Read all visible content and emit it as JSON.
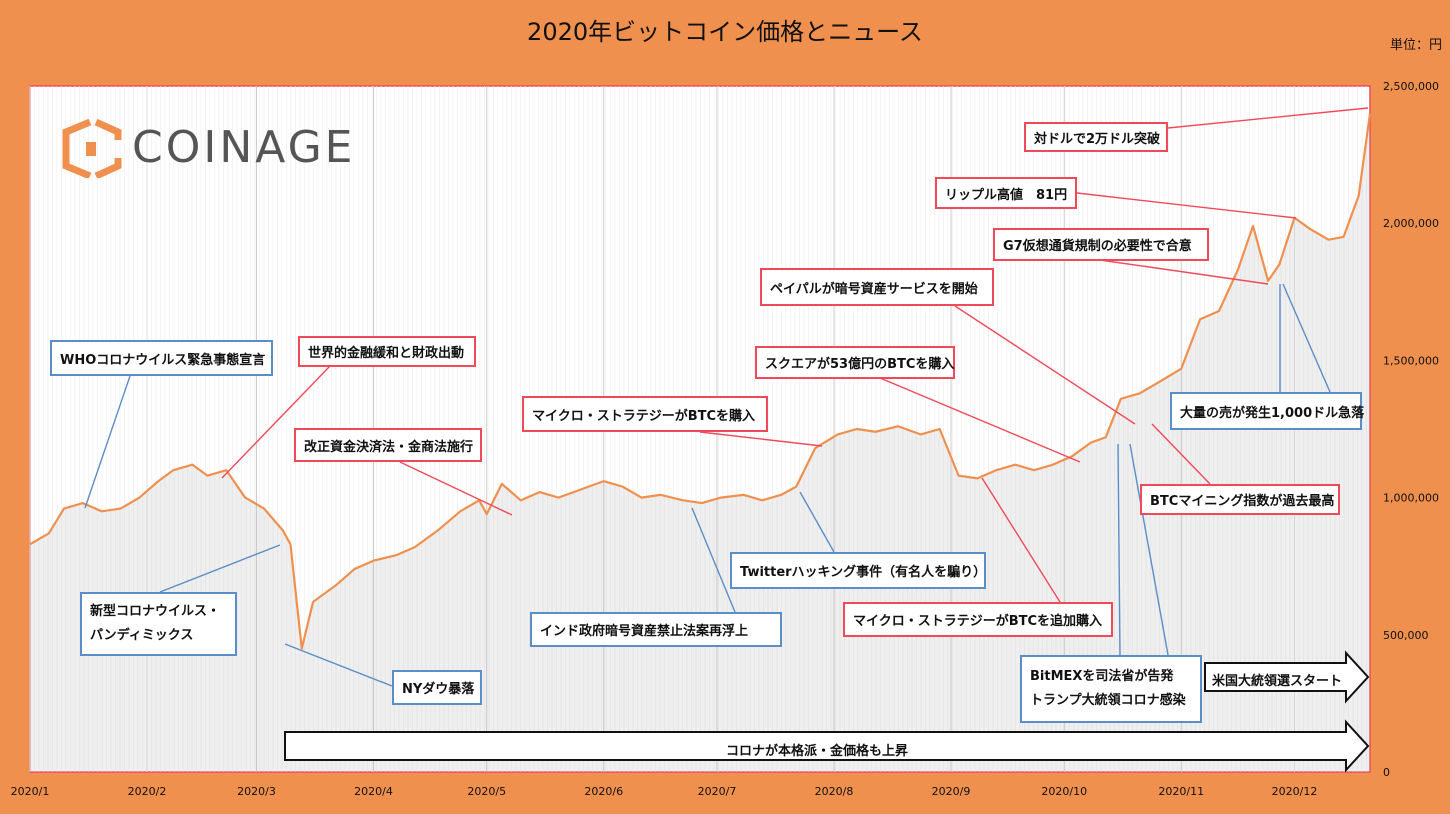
{
  "chart_data": {
    "type": "area",
    "title": "2020年ビットコイン価格とニュース",
    "unit_label": "単位：円",
    "x_ticks": [
      "2020/1",
      "2020/2",
      "2020/3",
      "2020/4",
      "2020/5",
      "2020/6",
      "2020/7",
      "2020/8",
      "2020/9",
      "2020/10",
      "2020/11",
      "2020/12"
    ],
    "y_ticks": [
      "0",
      "500,000",
      "1,000,000",
      "1,500,000",
      "2,000,000",
      "2,500,000"
    ],
    "ylim": [
      0,
      2500000
    ],
    "grid": "vertical",
    "line_color": "#F0904E",
    "series": [
      {
        "x": [
          "2020/1/1",
          "2020/1/6",
          "2020/1/10",
          "2020/1/15",
          "2020/1/20",
          "2020/1/25",
          "2020/1/30",
          "2020/2/4",
          "2020/2/8",
          "2020/2/13",
          "2020/2/17",
          "2020/2/22",
          "2020/2/27",
          "2020/3/3",
          "2020/3/8",
          "2020/3/10",
          "2020/3/13",
          "2020/3/16",
          "2020/3/22",
          "2020/3/27",
          "2020/4/1",
          "2020/4/7",
          "2020/4/12",
          "2020/4/18",
          "2020/4/24",
          "2020/4/29",
          "2020/5/1",
          "2020/5/5",
          "2020/5/10",
          "2020/5/15",
          "2020/5/20",
          "2020/5/26",
          "2020/6/1",
          "2020/6/6",
          "2020/6/11",
          "2020/6/16",
          "2020/6/22",
          "2020/6/27",
          "2020/7/2",
          "2020/7/8",
          "2020/7/13",
          "2020/7/18",
          "2020/7/22",
          "2020/7/27",
          "2020/8/2",
          "2020/8/7",
          "2020/8/12",
          "2020/8/18",
          "2020/8/24",
          "2020/8/29",
          "2020/9/3",
          "2020/9/8",
          "2020/9/13",
          "2020/9/18",
          "2020/9/23",
          "2020/9/28",
          "2020/10/3",
          "2020/10/8",
          "2020/10/12",
          "2020/10/16",
          "2020/10/21",
          "2020/10/26",
          "2020/11/1",
          "2020/11/6",
          "2020/11/11",
          "2020/11/16",
          "2020/11/20",
          "2020/11/24",
          "2020/11/27",
          "2020/12/1",
          "2020/12/5",
          "2020/12/10",
          "2020/12/14",
          "2020/12/18",
          "2020/12/21"
        ],
        "values": [
          830000,
          870000,
          960000,
          980000,
          950000,
          960000,
          1000000,
          1060000,
          1100000,
          1120000,
          1080000,
          1100000,
          1000000,
          960000,
          880000,
          830000,
          450000,
          620000,
          680000,
          740000,
          770000,
          790000,
          820000,
          880000,
          950000,
          990000,
          940000,
          1050000,
          990000,
          1020000,
          1000000,
          1030000,
          1060000,
          1040000,
          1000000,
          1010000,
          990000,
          980000,
          1000000,
          1010000,
          990000,
          1010000,
          1040000,
          1180000,
          1230000,
          1250000,
          1240000,
          1260000,
          1230000,
          1250000,
          1080000,
          1070000,
          1100000,
          1120000,
          1100000,
          1120000,
          1150000,
          1200000,
          1220000,
          1360000,
          1380000,
          1420000,
          1470000,
          1650000,
          1680000,
          1830000,
          1990000,
          1790000,
          1850000,
          2020000,
          1980000,
          1940000,
          1950000,
          2100000,
          2400000
        ]
      }
    ],
    "annotations": [
      {
        "text": "WHOコロナウイルス緊急事態宣言",
        "color": "blue"
      },
      {
        "text": "世界的金融緩和と財政出動",
        "color": "red"
      },
      {
        "text": "改正資金決済法・金商法施行",
        "color": "red"
      },
      {
        "text": "マイクロ・ストラテジーがBTCを購入",
        "color": "red"
      },
      {
        "text": "スクエアが53億円のBTCを購入",
        "color": "red"
      },
      {
        "text": "ペイパルが暗号資産サービスを開始",
        "color": "red"
      },
      {
        "text": "G7仮想通貨規制の必要性で合意",
        "color": "red"
      },
      {
        "text": "リップル高値　81円",
        "color": "red"
      },
      {
        "text": "対ドルで2万ドル突破",
        "color": "red"
      },
      {
        "text": "大量の売が発生1,000ドル急落",
        "color": "blue"
      },
      {
        "text": "BTCマイニング指数が過去最高",
        "color": "red"
      },
      {
        "text": "マイクロ・ストラテジーがBTCを追加購入",
        "color": "red"
      },
      {
        "text": "Twitterハッキング事件（有名人を騙り）",
        "color": "blue"
      },
      {
        "text": "インド政府暗号資産禁止法案再浮上",
        "color": "blue"
      },
      {
        "text": "NYダウ暴落",
        "color": "blue"
      },
      {
        "text": "新型コロナウイルス・",
        "text2": "パンディミックス",
        "color": "blue"
      },
      {
        "text": "BitMEXを司法省が告発",
        "text2": "トランプ大統領コロナ感染",
        "color": "blue"
      }
    ],
    "period_arrows": [
      {
        "text": "米国大統領選スタート"
      },
      {
        "text": "コロナが本格派・金価格も上昇"
      }
    ]
  },
  "logo": {
    "text": "COINAGE",
    "icon": "coinage-logo-icon"
  }
}
